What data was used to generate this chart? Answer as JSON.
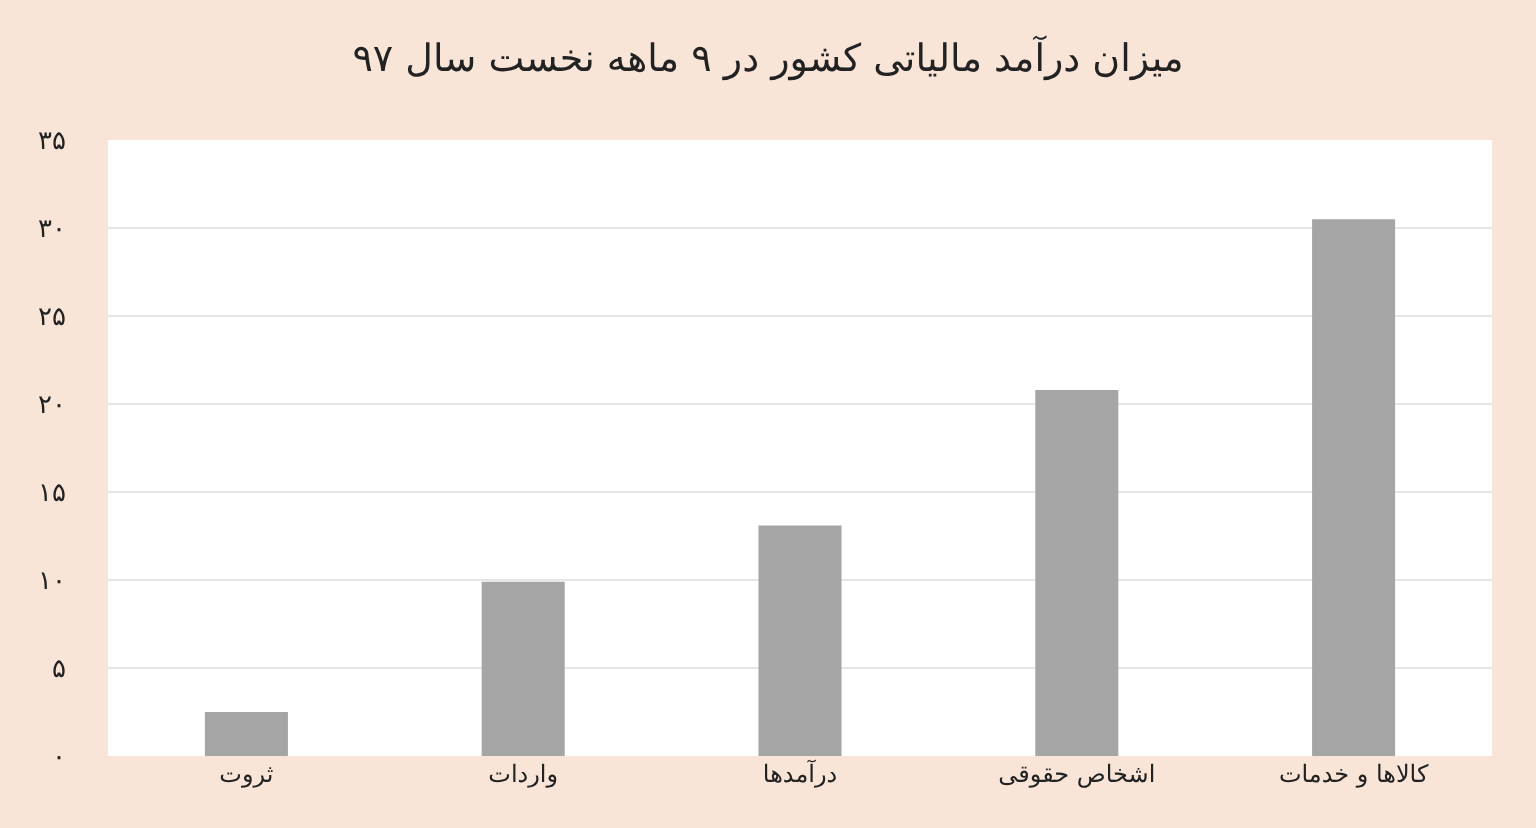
{
  "chart_data": {
    "type": "bar",
    "title": "میزان درآمد مالیاتی کشور در ۹ ماهه نخست سال ۹۷",
    "categories": [
      "ثروت",
      "واردات",
      "درآمدها",
      "اشخاص حقوقی",
      "کالاها و خدمات"
    ],
    "values": [
      2.5,
      9.9,
      13.1,
      20.8,
      30.5
    ],
    "color": "#a5a5a5",
    "ylim": [
      0,
      35
    ],
    "yticks": [
      {
        "value": 0,
        "label": "۰"
      },
      {
        "value": 5,
        "label": "۵"
      },
      {
        "value": 10,
        "label": "۱۰"
      },
      {
        "value": 15,
        "label": "۱۵"
      },
      {
        "value": 20,
        "label": "۲۰"
      },
      {
        "value": 25,
        "label": "۲۵"
      },
      {
        "value": 30,
        "label": "۳۰"
      },
      {
        "value": 35,
        "label": "۳۵"
      }
    ],
    "grid": "y"
  }
}
